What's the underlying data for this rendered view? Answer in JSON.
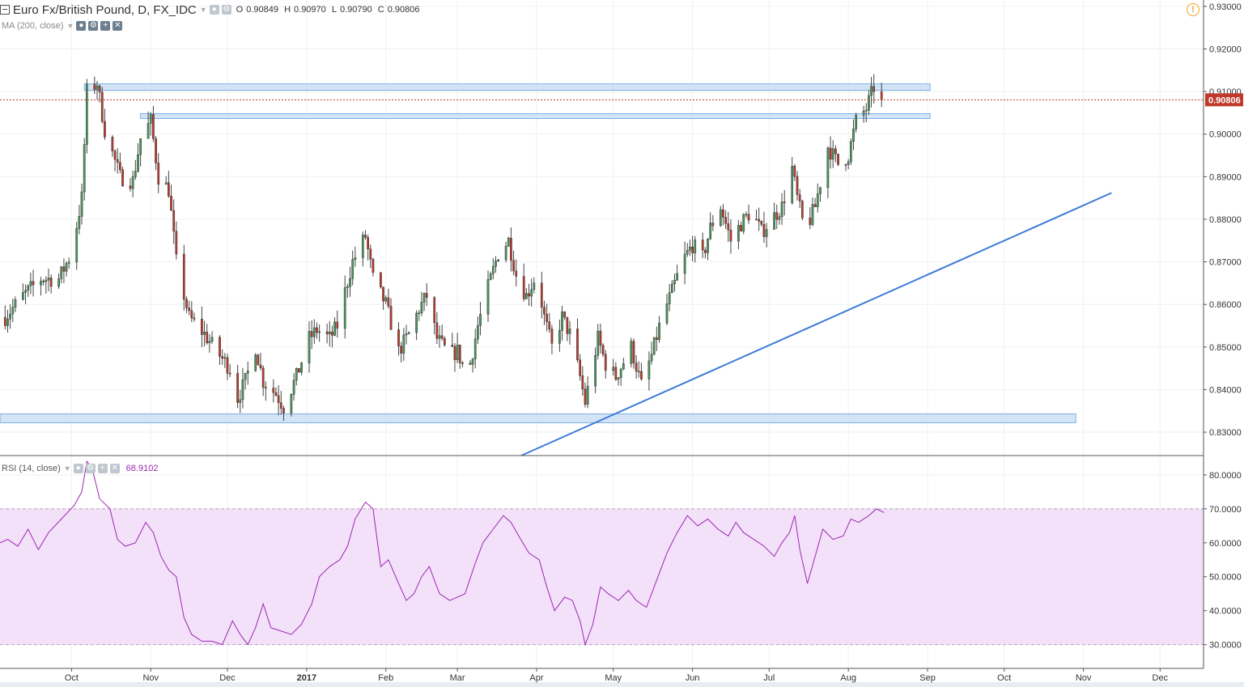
{
  "header": {
    "symbol": "Euro Fx/British Pound, D, FX_IDC",
    "open_label": "O",
    "open": "0.90849",
    "high_label": "H",
    "high": "0.90970",
    "low_label": "L",
    "low": "0.90790",
    "close_label": "C",
    "close": "0.90806"
  },
  "ma_legend": "MA (200, close)",
  "rsi_legend": {
    "label": "RSI (14, close)",
    "value": "68.9102"
  },
  "last_price_label": "0.90806",
  "icons": [
    "collapse-icon",
    "eye-icon",
    "gear-icon",
    "plus-icon",
    "close-icon",
    "alert-icon"
  ],
  "colors": {
    "up": "#4a9a5e",
    "down": "#c0392b",
    "trendline": "#3d7bd9",
    "zone_fill": "#cfe2f7",
    "zone_stroke": "#6ea6e2",
    "rsi": "#9c27b0",
    "rsi_band": "#f3e1fa",
    "price_line": "#c0392b",
    "alert": "#f7a21b"
  },
  "chart_data": [
    {
      "type": "candlestick",
      "title": "Euro Fx/British Pound, D, FX_IDC",
      "y_ticks": [
        "0.93000",
        "0.92000",
        "0.91000",
        "0.90000",
        "0.89000",
        "0.88000",
        "0.87000",
        "0.86000",
        "0.85000",
        "0.84000",
        "0.83000"
      ],
      "ylim": [
        0.8245,
        0.9315
      ],
      "x_ticks": [
        "Oct",
        "Nov",
        "Dec",
        "2017",
        "Feb",
        "Mar",
        "Apr",
        "May",
        "Jun",
        "Jul",
        "Aug",
        "Sep",
        "Oct",
        "Nov",
        "Dec"
      ],
      "x_tick_dates": [
        "2016-10-01",
        "2016-11-01",
        "2016-12-01",
        "2017-01-01",
        "2017-02-01",
        "2017-03-01",
        "2017-04-01",
        "2017-05-01",
        "2017-06-01",
        "2017-07-01",
        "2017-08-01",
        "2017-09-01",
        "2017-10-01",
        "2017-11-01",
        "2017-12-01"
      ],
      "xlim": [
        "2016-09-03",
        "2017-12-18"
      ],
      "last_price": 0.90806,
      "price_path": [
        [
          "2016-09-05",
          0.857
        ],
        [
          "2016-09-12",
          0.862
        ],
        [
          "2016-09-19",
          0.866
        ],
        [
          "2016-09-26",
          0.866
        ],
        [
          "2016-10-01",
          0.872
        ],
        [
          "2016-10-05",
          0.885
        ],
        [
          "2016-10-07",
          0.91
        ],
        [
          "2016-10-11",
          0.912
        ],
        [
          "2016-10-14",
          0.901
        ],
        [
          "2016-10-20",
          0.89
        ],
        [
          "2016-10-25",
          0.889
        ],
        [
          "2016-10-28",
          0.899
        ],
        [
          "2016-11-01",
          0.903
        ],
        [
          "2016-11-04",
          0.89
        ],
        [
          "2016-11-08",
          0.887
        ],
        [
          "2016-11-11",
          0.87
        ],
        [
          "2016-11-16",
          0.857
        ],
        [
          "2016-11-22",
          0.853
        ],
        [
          "2016-11-28",
          0.848
        ],
        [
          "2016-12-02",
          0.845
        ],
        [
          "2016-12-05",
          0.838
        ],
        [
          "2016-12-08",
          0.842
        ],
        [
          "2016-12-12",
          0.85
        ],
        [
          "2016-12-15",
          0.842
        ],
        [
          "2016-12-20",
          0.839
        ],
        [
          "2016-12-23",
          0.836
        ],
        [
          "2016-12-28",
          0.843
        ],
        [
          "2017-01-02",
          0.852
        ],
        [
          "2017-01-05",
          0.854
        ],
        [
          "2017-01-10",
          0.852
        ],
        [
          "2017-01-13",
          0.855
        ],
        [
          "2017-01-16",
          0.863
        ],
        [
          "2017-01-19",
          0.87
        ],
        [
          "2017-01-24",
          0.876
        ],
        [
          "2017-01-27",
          0.866
        ],
        [
          "2017-02-01",
          0.86
        ],
        [
          "2017-02-06",
          0.849
        ],
        [
          "2017-02-10",
          0.853
        ],
        [
          "2017-02-14",
          0.859
        ],
        [
          "2017-02-17",
          0.862
        ],
        [
          "2017-02-21",
          0.852
        ],
        [
          "2017-02-26",
          0.848
        ],
        [
          "2017-03-01",
          0.849
        ],
        [
          "2017-03-05",
          0.843
        ],
        [
          "2017-03-09",
          0.855
        ],
        [
          "2017-03-13",
          0.864
        ],
        [
          "2017-03-17",
          0.872
        ],
        [
          "2017-03-21",
          0.875
        ],
        [
          "2017-03-24",
          0.867
        ],
        [
          "2017-03-28",
          0.862
        ],
        [
          "2017-04-01",
          0.867
        ],
        [
          "2017-04-04",
          0.857
        ],
        [
          "2017-04-07",
          0.85
        ],
        [
          "2017-04-11",
          0.857
        ],
        [
          "2017-04-14",
          0.853
        ],
        [
          "2017-04-18",
          0.843
        ],
        [
          "2017-04-20",
          0.837
        ],
        [
          "2017-04-25",
          0.852
        ],
        [
          "2017-04-28",
          0.846
        ],
        [
          "2017-05-02",
          0.843
        ],
        [
          "2017-05-08",
          0.85
        ],
        [
          "2017-05-12",
          0.841
        ],
        [
          "2017-05-16",
          0.848
        ],
        [
          "2017-05-20",
          0.857
        ],
        [
          "2017-05-24",
          0.863
        ],
        [
          "2017-05-28",
          0.87
        ],
        [
          "2017-06-01",
          0.874
        ],
        [
          "2017-06-05",
          0.871
        ],
        [
          "2017-06-08",
          0.878
        ],
        [
          "2017-06-12",
          0.883
        ],
        [
          "2017-06-16",
          0.875
        ],
        [
          "2017-06-20",
          0.879
        ],
        [
          "2017-06-24",
          0.882
        ],
        [
          "2017-06-28",
          0.877
        ],
        [
          "2017-07-02",
          0.88
        ],
        [
          "2017-07-06",
          0.883
        ],
        [
          "2017-07-10",
          0.892
        ],
        [
          "2017-07-12",
          0.885
        ],
        [
          "2017-07-15",
          0.877
        ],
        [
          "2017-07-19",
          0.883
        ],
        [
          "2017-07-24",
          0.897
        ],
        [
          "2017-07-28",
          0.893
        ],
        [
          "2017-08-01",
          0.895
        ],
        [
          "2017-08-04",
          0.903
        ],
        [
          "2017-08-08",
          0.906
        ],
        [
          "2017-08-11",
          0.911
        ],
        [
          "2017-08-14",
          0.908
        ]
      ]
    },
    {
      "type": "line",
      "title": "RSI (14, close)",
      "series": [
        {
          "name": "RSI (14, close)",
          "last": 68.9102
        }
      ],
      "y_ticks": [
        "80.0000",
        "70.0000",
        "60.0000",
        "50.0000",
        "40.0000",
        "30.0000"
      ],
      "ylim": [
        23,
        85.7
      ],
      "band": [
        30,
        70
      ],
      "path": [
        [
          "2016-09-03",
          60
        ],
        [
          "2016-09-06",
          61
        ],
        [
          "2016-09-10",
          59
        ],
        [
          "2016-09-14",
          64
        ],
        [
          "2016-09-18",
          58
        ],
        [
          "2016-09-22",
          63
        ],
        [
          "2016-09-27",
          67
        ],
        [
          "2016-10-02",
          71
        ],
        [
          "2016-10-05",
          75
        ],
        [
          "2016-10-07",
          84
        ],
        [
          "2016-10-09",
          82
        ],
        [
          "2016-10-12",
          73
        ],
        [
          "2016-10-16",
          70
        ],
        [
          "2016-10-19",
          61
        ],
        [
          "2016-10-22",
          59
        ],
        [
          "2016-10-26",
          60
        ],
        [
          "2016-10-30",
          66
        ],
        [
          "2016-11-02",
          63
        ],
        [
          "2016-11-05",
          56
        ],
        [
          "2016-11-08",
          52
        ],
        [
          "2016-11-11",
          50
        ],
        [
          "2016-11-14",
          38
        ],
        [
          "2016-11-17",
          33
        ],
        [
          "2016-11-21",
          31
        ],
        [
          "2016-11-25",
          31
        ],
        [
          "2016-11-29",
          30
        ],
        [
          "2016-12-03",
          37
        ],
        [
          "2016-12-06",
          33
        ],
        [
          "2016-12-09",
          30
        ],
        [
          "2016-12-12",
          35
        ],
        [
          "2016-12-15",
          42
        ],
        [
          "2016-12-18",
          35
        ],
        [
          "2016-12-22",
          34
        ],
        [
          "2016-12-26",
          33
        ],
        [
          "2016-12-30",
          36
        ],
        [
          "2017-01-03",
          42
        ],
        [
          "2017-01-06",
          50
        ],
        [
          "2017-01-10",
          53
        ],
        [
          "2017-01-14",
          55
        ],
        [
          "2017-01-17",
          59
        ],
        [
          "2017-01-20",
          67
        ],
        [
          "2017-01-24",
          72
        ],
        [
          "2017-01-27",
          70
        ],
        [
          "2017-01-30",
          53
        ],
        [
          "2017-02-02",
          55
        ],
        [
          "2017-02-06",
          48
        ],
        [
          "2017-02-09",
          43
        ],
        [
          "2017-02-12",
          45
        ],
        [
          "2017-02-15",
          50
        ],
        [
          "2017-02-18",
          53
        ],
        [
          "2017-02-22",
          45
        ],
        [
          "2017-02-26",
          43
        ],
        [
          "2017-03-01",
          44
        ],
        [
          "2017-03-04",
          45
        ],
        [
          "2017-03-08",
          54
        ],
        [
          "2017-03-11",
          60
        ],
        [
          "2017-03-15",
          64
        ],
        [
          "2017-03-19",
          68
        ],
        [
          "2017-03-22",
          66
        ],
        [
          "2017-03-25",
          62
        ],
        [
          "2017-03-29",
          57
        ],
        [
          "2017-04-02",
          55
        ],
        [
          "2017-04-05",
          47
        ],
        [
          "2017-04-08",
          40
        ],
        [
          "2017-04-12",
          44
        ],
        [
          "2017-04-15",
          43
        ],
        [
          "2017-04-18",
          37
        ],
        [
          "2017-04-20",
          30
        ],
        [
          "2017-04-23",
          36
        ],
        [
          "2017-04-26",
          47
        ],
        [
          "2017-04-29",
          45
        ],
        [
          "2017-05-03",
          43
        ],
        [
          "2017-05-07",
          46
        ],
        [
          "2017-05-10",
          43
        ],
        [
          "2017-05-14",
          41
        ],
        [
          "2017-05-18",
          49
        ],
        [
          "2017-05-22",
          57
        ],
        [
          "2017-05-26",
          63
        ],
        [
          "2017-05-30",
          68
        ],
        [
          "2017-06-03",
          65
        ],
        [
          "2017-06-07",
          67
        ],
        [
          "2017-06-11",
          64
        ],
        [
          "2017-06-15",
          62
        ],
        [
          "2017-06-18",
          66
        ],
        [
          "2017-06-21",
          63
        ],
        [
          "2017-06-25",
          61
        ],
        [
          "2017-06-29",
          59
        ],
        [
          "2017-07-03",
          56
        ],
        [
          "2017-07-06",
          60
        ],
        [
          "2017-07-09",
          63
        ],
        [
          "2017-07-11",
          68
        ],
        [
          "2017-07-13",
          58
        ],
        [
          "2017-07-16",
          48
        ],
        [
          "2017-07-19",
          56
        ],
        [
          "2017-07-22",
          64
        ],
        [
          "2017-07-26",
          61
        ],
        [
          "2017-07-30",
          62
        ],
        [
          "2017-08-02",
          67
        ],
        [
          "2017-08-05",
          66
        ],
        [
          "2017-08-09",
          68
        ],
        [
          "2017-08-12",
          70
        ],
        [
          "2017-08-15",
          68.91
        ]
      ]
    }
  ]
}
